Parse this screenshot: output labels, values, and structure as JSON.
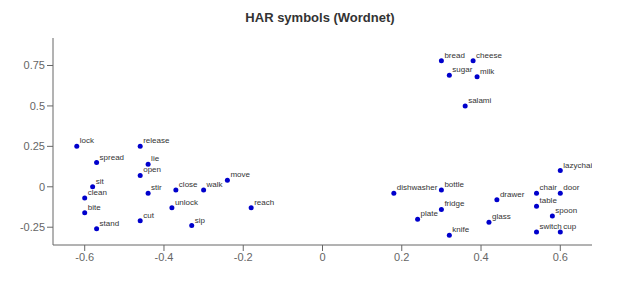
{
  "chart_data": {
    "type": "scatter",
    "title": "HAR symbols (Wordnet)",
    "x": [
      -0.62,
      -0.57,
      -0.58,
      -0.6,
      -0.6,
      -0.57,
      -0.46,
      -0.44,
      -0.46,
      -0.44,
      -0.46,
      -0.37,
      -0.38,
      -0.3,
      -0.33,
      -0.24,
      -0.18,
      0.3,
      0.32,
      0.38,
      0.39,
      0.36,
      0.18,
      0.3,
      0.3,
      0.24,
      0.32,
      0.44,
      0.42,
      0.6,
      0.54,
      0.6,
      0.54,
      0.58,
      0.54,
      0.6
    ],
    "values": [
      0.25,
      0.15,
      0.0,
      -0.07,
      -0.16,
      -0.26,
      0.25,
      0.14,
      0.07,
      -0.04,
      -0.21,
      -0.02,
      -0.13,
      -0.02,
      -0.24,
      0.04,
      -0.13,
      0.78,
      0.69,
      0.78,
      0.68,
      0.5,
      -0.04,
      -0.02,
      -0.14,
      -0.2,
      -0.3,
      -0.08,
      -0.22,
      0.1,
      -0.04,
      -0.04,
      -0.12,
      -0.18,
      -0.28,
      -0.28
    ],
    "annotations": [
      "lock",
      "spread",
      "sit",
      "clean",
      "bite",
      "stand",
      "release",
      "lie",
      "open",
      "stir",
      "cut",
      "close",
      "unlock",
      "walk",
      "sip",
      "move",
      "reach",
      "bread",
      "sugar",
      "cheese",
      "milk",
      "salami",
      "dishwasher",
      "bottle",
      "fridge",
      "plate",
      "knife",
      "drawer",
      "glass",
      "lazychair",
      "chair",
      "door",
      "table",
      "spoon",
      "switch",
      "cup"
    ],
    "color": "#0000cc",
    "xlim": [
      -0.68,
      0.68
    ],
    "ylim": [
      -0.36,
      0.92
    ],
    "xticks": [
      -0.6,
      -0.4,
      -0.2,
      0,
      0.2,
      0.4,
      0.6
    ],
    "yticks": [
      -0.25,
      0,
      0.25,
      0.5,
      0.75
    ],
    "grid": false
  }
}
